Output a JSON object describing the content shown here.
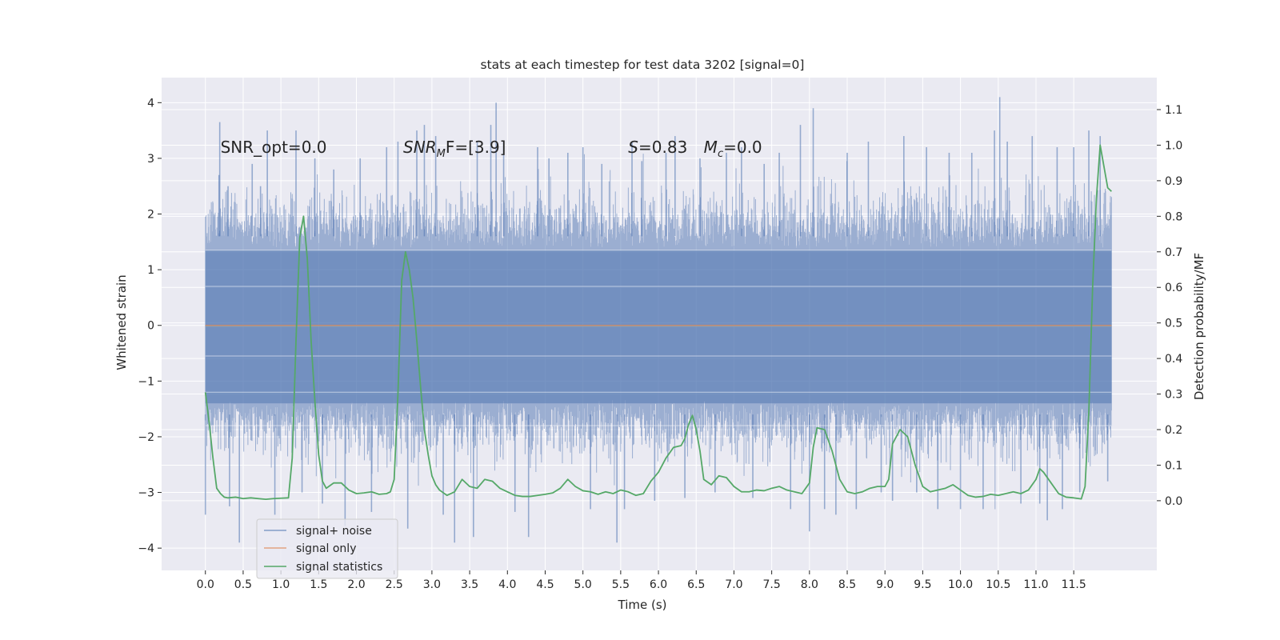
{
  "chart_data": {
    "type": "line",
    "title": "stats at each timestep for test data 3202 [signal=0]",
    "xlabel": "Time (s)",
    "ylabel_left": "Whitened strain",
    "ylabel_right": "Detection probability/MF",
    "xlim": [
      -0.58,
      12.6
    ],
    "ylim_left": [
      -4.4,
      4.45
    ],
    "ylim_right": [
      -0.196,
      1.19
    ],
    "x_ticks": [
      0.0,
      0.5,
      1.0,
      1.5,
      2.0,
      2.5,
      3.0,
      3.5,
      4.0,
      4.5,
      5.0,
      5.5,
      6.0,
      6.5,
      7.0,
      7.5,
      8.0,
      8.5,
      9.0,
      9.5,
      10.0,
      10.5,
      11.0,
      11.5
    ],
    "x_tick_labels": [
      "0.0",
      "0.5",
      "1.0",
      "1.5",
      "2.0",
      "2.5",
      "3.0",
      "3.5",
      "4.0",
      "4.5",
      "5.0",
      "5.5",
      "6.0",
      "6.5",
      "7.0",
      "7.5",
      "8.0",
      "8.5",
      "9.0",
      "9.5",
      "10.0",
      "10.5",
      "11.0",
      "11.5"
    ],
    "y_ticks_left": [
      -4,
      -3,
      -2,
      -1,
      0,
      1,
      2,
      3,
      4
    ],
    "y_tick_labels_left": [
      "−4",
      "−3",
      "−2",
      "−1",
      "0",
      "1",
      "2",
      "3",
      "4"
    ],
    "y_ticks_right": [
      0.0,
      0.1,
      0.2,
      0.3,
      0.4,
      0.5,
      0.6,
      0.7,
      0.8,
      0.9,
      1.0,
      1.1
    ],
    "y_tick_labels_right": [
      "0.0",
      "0.1",
      "0.2",
      "0.3",
      "0.4",
      "0.5",
      "0.6",
      "0.7",
      "0.8",
      "0.9",
      "1.0",
      "1.1"
    ],
    "grid": true,
    "legend_position": "lower-left",
    "annotations": [
      {
        "text": "SNR_opt=0.0",
        "x": 0.2,
        "y": 3.2
      },
      {
        "text_main": "SNR",
        "text_sub": "M",
        "text_rest": "F=[3.9]",
        "x": 2.62,
        "y": 3.2
      },
      {
        "text_main": "S",
        "text_rest": "=0.83",
        "x": 5.6,
        "y": 3.2
      },
      {
        "text_main": "M",
        "text_sub": "c",
        "text_rest": "=0.0",
        "x": 6.6,
        "y": 3.2
      }
    ],
    "series": [
      {
        "name": "signal+ noise",
        "axis": "left",
        "color": "#4c72b0",
        "opacity": 0.5,
        "x_range": [
          0.0,
          12.0
        ],
        "typical_range": [
          -1.85,
          1.9
        ],
        "extreme_range": [
          -3.9,
          4.1
        ],
        "note_values": "dense noise trace; extreme values shown by spikes",
        "spikes": [
          {
            "x": 0.0,
            "y": -3.4
          },
          {
            "x": 0.18,
            "y": 2.7
          },
          {
            "x": 0.19,
            "y": 3.65
          },
          {
            "x": 0.3,
            "y": 2.5
          },
          {
            "x": 0.32,
            "y": -3.25
          },
          {
            "x": 0.45,
            "y": -3.9
          },
          {
            "x": 0.62,
            "y": 2.9
          },
          {
            "x": 0.73,
            "y": 2.5
          },
          {
            "x": 0.82,
            "y": 3.5
          },
          {
            "x": 0.92,
            "y": -3.4
          },
          {
            "x": 1.2,
            "y": 3.5
          },
          {
            "x": 1.28,
            "y": -3.0
          },
          {
            "x": 1.45,
            "y": 3.0
          },
          {
            "x": 1.55,
            "y": -3.2
          },
          {
            "x": 1.7,
            "y": 2.8
          },
          {
            "x": 1.85,
            "y": -3.6
          },
          {
            "x": 2.05,
            "y": 3.0
          },
          {
            "x": 2.2,
            "y": -3.35
          },
          {
            "x": 2.4,
            "y": 3.2
          },
          {
            "x": 2.55,
            "y": 3.3
          },
          {
            "x": 2.68,
            "y": -3.65
          },
          {
            "x": 2.8,
            "y": 3.5
          },
          {
            "x": 2.9,
            "y": 3.6
          },
          {
            "x": 3.05,
            "y": 3.4
          },
          {
            "x": 3.15,
            "y": -3.4
          },
          {
            "x": 3.3,
            "y": -3.9
          },
          {
            "x": 3.55,
            "y": -3.8
          },
          {
            "x": 3.6,
            "y": 3.3
          },
          {
            "x": 3.78,
            "y": 3.6
          },
          {
            "x": 3.85,
            "y": 4.0
          },
          {
            "x": 3.95,
            "y": 3.3
          },
          {
            "x": 4.1,
            "y": -3.35
          },
          {
            "x": 4.28,
            "y": -3.8
          },
          {
            "x": 4.4,
            "y": 3.2
          },
          {
            "x": 4.55,
            "y": 3.0
          },
          {
            "x": 4.8,
            "y": 3.1
          },
          {
            "x": 5.0,
            "y": 3.2
          },
          {
            "x": 5.1,
            "y": -3.3
          },
          {
            "x": 5.25,
            "y": 2.9
          },
          {
            "x": 5.45,
            "y": -3.9
          },
          {
            "x": 5.55,
            "y": -3.3
          },
          {
            "x": 5.65,
            "y": 3.3
          },
          {
            "x": 5.78,
            "y": 2.95
          },
          {
            "x": 5.95,
            "y": -3.15
          },
          {
            "x": 6.1,
            "y": 3.1
          },
          {
            "x": 6.22,
            "y": 3.4
          },
          {
            "x": 6.35,
            "y": -3.1
          },
          {
            "x": 6.55,
            "y": 3.0
          },
          {
            "x": 6.75,
            "y": -3.0
          },
          {
            "x": 6.9,
            "y": 3.1
          },
          {
            "x": 7.1,
            "y": 3.2
          },
          {
            "x": 7.25,
            "y": -3.1
          },
          {
            "x": 7.4,
            "y": 2.9
          },
          {
            "x": 7.6,
            "y": 3.1
          },
          {
            "x": 7.75,
            "y": -3.3
          },
          {
            "x": 7.88,
            "y": 3.6
          },
          {
            "x": 8.0,
            "y": -3.7
          },
          {
            "x": 8.05,
            "y": 3.9
          },
          {
            "x": 8.2,
            "y": -3.3
          },
          {
            "x": 8.35,
            "y": -3.4
          },
          {
            "x": 8.5,
            "y": 3.1
          },
          {
            "x": 8.62,
            "y": -3.3
          },
          {
            "x": 8.78,
            "y": 3.3
          },
          {
            "x": 8.95,
            "y": -3.0
          },
          {
            "x": 9.1,
            "y": -3.15
          },
          {
            "x": 9.25,
            "y": 3.4
          },
          {
            "x": 9.42,
            "y": -3.0
          },
          {
            "x": 9.55,
            "y": 3.2
          },
          {
            "x": 9.7,
            "y": -3.3
          },
          {
            "x": 9.85,
            "y": 3.1
          },
          {
            "x": 10.0,
            "y": -3.3
          },
          {
            "x": 10.15,
            "y": 3.1
          },
          {
            "x": 10.3,
            "y": -3.3
          },
          {
            "x": 10.45,
            "y": 3.5
          },
          {
            "x": 10.52,
            "y": 4.1
          },
          {
            "x": 10.62,
            "y": 3.3
          },
          {
            "x": 10.8,
            "y": -3.2
          },
          {
            "x": 10.95,
            "y": 3.4
          },
          {
            "x": 11.05,
            "y": -3.2
          },
          {
            "x": 11.15,
            "y": -3.5
          },
          {
            "x": 11.28,
            "y": 3.2
          },
          {
            "x": 11.35,
            "y": -3.3
          },
          {
            "x": 11.5,
            "y": 3.2
          },
          {
            "x": 11.58,
            "y": -3.0
          },
          {
            "x": 11.7,
            "y": 3.5
          },
          {
            "x": 11.85,
            "y": 3.4
          },
          {
            "x": 11.95,
            "y": -2.8
          }
        ]
      },
      {
        "name": "signal only",
        "axis": "left",
        "color": "#dd8452",
        "opacity": 0.55,
        "x": [
          0.0,
          12.0
        ],
        "values": [
          0.0,
          0.0
        ]
      },
      {
        "name": "signal statistics",
        "axis": "right",
        "color": "#55a868",
        "x": [
          0.0,
          0.05,
          0.1,
          0.15,
          0.2,
          0.25,
          0.3,
          0.4,
          0.5,
          0.6,
          0.7,
          0.8,
          0.9,
          1.0,
          1.1,
          1.15,
          1.2,
          1.25,
          1.3,
          1.35,
          1.4,
          1.45,
          1.5,
          1.55,
          1.6,
          1.7,
          1.8,
          1.9,
          2.0,
          2.1,
          2.2,
          2.3,
          2.4,
          2.45,
          2.5,
          2.55,
          2.6,
          2.65,
          2.7,
          2.75,
          2.8,
          2.85,
          2.9,
          2.95,
          3.0,
          3.05,
          3.1,
          3.2,
          3.3,
          3.4,
          3.5,
          3.6,
          3.7,
          3.8,
          3.9,
          4.0,
          4.1,
          4.2,
          4.3,
          4.4,
          4.5,
          4.6,
          4.7,
          4.8,
          4.9,
          5.0,
          5.1,
          5.2,
          5.3,
          5.4,
          5.5,
          5.6,
          5.7,
          5.8,
          5.9,
          6.0,
          6.1,
          6.2,
          6.3,
          6.35,
          6.4,
          6.45,
          6.5,
          6.55,
          6.6,
          6.7,
          6.8,
          6.9,
          7.0,
          7.1,
          7.2,
          7.3,
          7.4,
          7.5,
          7.6,
          7.7,
          7.8,
          7.9,
          8.0,
          8.05,
          8.1,
          8.2,
          8.3,
          8.4,
          8.5,
          8.6,
          8.7,
          8.8,
          8.9,
          9.0,
          9.05,
          9.1,
          9.2,
          9.3,
          9.4,
          9.5,
          9.6,
          9.7,
          9.8,
          9.9,
          10.0,
          10.1,
          10.2,
          10.3,
          10.4,
          10.5,
          10.6,
          10.7,
          10.8,
          10.9,
          11.0,
          11.05,
          11.1,
          11.2,
          11.3,
          11.4,
          11.5,
          11.6,
          11.65,
          11.7,
          11.75,
          11.8,
          11.85,
          11.9,
          11.95,
          12.0
        ],
        "values": [
          0.305,
          0.22,
          0.12,
          0.035,
          0.02,
          0.01,
          0.008,
          0.01,
          0.006,
          0.008,
          0.006,
          0.004,
          0.006,
          0.007,
          0.008,
          0.12,
          0.45,
          0.74,
          0.8,
          0.68,
          0.45,
          0.28,
          0.13,
          0.055,
          0.035,
          0.05,
          0.05,
          0.03,
          0.02,
          0.022,
          0.025,
          0.018,
          0.02,
          0.025,
          0.06,
          0.3,
          0.62,
          0.7,
          0.65,
          0.57,
          0.45,
          0.32,
          0.2,
          0.13,
          0.07,
          0.045,
          0.03,
          0.015,
          0.025,
          0.06,
          0.04,
          0.035,
          0.06,
          0.055,
          0.035,
          0.025,
          0.015,
          0.012,
          0.012,
          0.015,
          0.018,
          0.022,
          0.035,
          0.06,
          0.04,
          0.028,
          0.025,
          0.018,
          0.025,
          0.02,
          0.03,
          0.025,
          0.015,
          0.02,
          0.055,
          0.08,
          0.12,
          0.15,
          0.155,
          0.175,
          0.215,
          0.24,
          0.2,
          0.14,
          0.06,
          0.045,
          0.07,
          0.065,
          0.04,
          0.025,
          0.025,
          0.03,
          0.028,
          0.035,
          0.04,
          0.03,
          0.025,
          0.02,
          0.05,
          0.15,
          0.205,
          0.2,
          0.14,
          0.06,
          0.025,
          0.02,
          0.025,
          0.035,
          0.04,
          0.04,
          0.06,
          0.16,
          0.2,
          0.18,
          0.1,
          0.04,
          0.025,
          0.03,
          0.035,
          0.045,
          0.03,
          0.015,
          0.01,
          0.012,
          0.018,
          0.015,
          0.02,
          0.025,
          0.02,
          0.03,
          0.06,
          0.09,
          0.08,
          0.05,
          0.02,
          0.01,
          0.008,
          0.005,
          0.04,
          0.25,
          0.6,
          0.85,
          1.0,
          0.94,
          0.88,
          0.87
        ]
      }
    ]
  }
}
